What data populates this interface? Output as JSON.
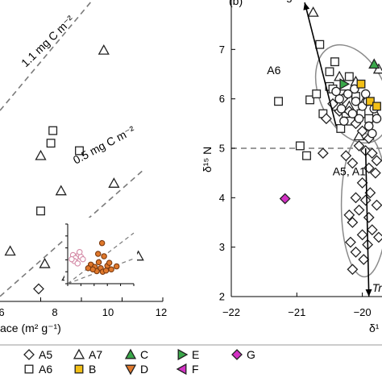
{
  "chart_data": [
    {
      "type": "scatter",
      "title": "",
      "xlabel": "ace (m² g⁻¹)",
      "xlim": [
        4,
        12
      ],
      "xticks": [
        "6",
        "8",
        "10",
        "12"
      ],
      "ylim": [
        0,
        12
      ],
      "grid": false,
      "reference_lines": [
        {
          "label": "1.1 mg C m⁻²",
          "points": [
            [
              4,
              7.6
            ],
            [
              10.2,
              13.6
            ]
          ]
        },
        {
          "label": "0.5 mg C m⁻²",
          "points": [
            [
              4,
              0.2
            ],
            [
              11,
              5.2
            ]
          ]
        }
      ],
      "series": [
        {
          "name": "A7",
          "marker": "triangle-up",
          "color": "#ffffff",
          "points": [
            [
              9.1,
              10.0
            ],
            [
              6.0,
              5.8
            ],
            [
              7.0,
              4.4
            ],
            [
              9.6,
              4.7
            ],
            [
              6.2,
              1.5
            ],
            [
              7.3,
              1.0
            ],
            [
              10.8,
              1.8
            ],
            [
              4.5,
              2.0
            ]
          ]
        },
        {
          "name": "A6",
          "marker": "square",
          "color": "#ffffff",
          "points": [
            [
              7.9,
              6.0
            ],
            [
              6.6,
              6.8
            ],
            [
              6.0,
              3.6
            ],
            [
              6.5,
              6.3
            ]
          ]
        },
        {
          "name": "A5",
          "marker": "diamond",
          "color": "#ffffff",
          "points": [
            [
              5.9,
              0.5
            ],
            [
              7.6,
              -0.5
            ]
          ]
        }
      ],
      "inset": {
        "xlim": [
          0,
          10
        ],
        "ylim": [
          0,
          10
        ],
        "series": [
          {
            "name": "pink-open",
            "color": "#d48aa6",
            "points": [
              [
                0.8,
                4.8
              ],
              [
                1.2,
                4.3
              ],
              [
                1.7,
                4.9
              ],
              [
                1.0,
                3.8
              ],
              [
                2.0,
                4.5
              ],
              [
                0.6,
                4.1
              ],
              [
                1.5,
                3.4
              ],
              [
                2.3,
                4.1
              ],
              [
                1.8,
                5.3
              ]
            ]
          },
          {
            "name": "orange-filled",
            "color": "#e0782b",
            "points": [
              [
                5.2,
                6.8
              ],
              [
                4.6,
                5.0
              ],
              [
                5.5,
                4.6
              ],
              [
                3.5,
                3.2
              ],
              [
                4.1,
                2.8
              ],
              [
                5.0,
                2.6
              ],
              [
                6.0,
                3.0
              ],
              [
                4.4,
                2.1
              ],
              [
                5.3,
                2.0
              ],
              [
                3.8,
                2.4
              ],
              [
                6.6,
                2.4
              ],
              [
                7.4,
                2.9
              ],
              [
                4.7,
                3.6
              ],
              [
                5.8,
                2.2
              ],
              [
                3.1,
                2.6
              ],
              [
                6.3,
                3.5
              ]
            ]
          }
        ],
        "lines": [
          [
            [
              0,
              0
            ],
            [
              10,
              8.5
            ]
          ],
          [
            [
              0,
              0
            ],
            [
              10,
              4.2
            ]
          ]
        ]
      }
    },
    {
      "type": "scatter",
      "panel_label": "(b)",
      "title": "",
      "xlabel": "δ¹",
      "ylabel": "δ¹⁵ N",
      "xlim": [
        -22,
        -19.7
      ],
      "xticks": [
        "−22",
        "−21",
        "−20"
      ],
      "ylim": [
        2,
        8
      ],
      "yticks": [
        "2",
        "3",
        "4",
        "5",
        "6",
        "7"
      ],
      "grid": false,
      "hline": 5.0,
      "annotations": [
        {
          "text": "degradation",
          "x": -20.9,
          "y": 8.0
        },
        {
          "text": "A6",
          "x": -21.35,
          "y": 6.5
        },
        {
          "text": "A5, A1",
          "x": -20.2,
          "y": 4.45
        },
        {
          "text": "Tr",
          "x": -19.85,
          "y": 2.1,
          "italic": true
        }
      ],
      "ellipses": [
        {
          "name": "A6",
          "cx": -20.15,
          "cy": 6.1,
          "rx": 0.5,
          "ry": 1.05,
          "rotate": -25
        },
        {
          "name": "A5, A1",
          "cx": -19.97,
          "cy": 3.85,
          "rx": 0.35,
          "ry": 1.45,
          "rotate": 0
        }
      ],
      "arrows": [
        {
          "from": [
            -20.4,
            5.45
          ],
          "to": [
            -20.88,
            7.95
          ]
        },
        {
          "from": [
            -19.95,
            5.0
          ],
          "to": [
            -19.9,
            2.0
          ]
        }
      ],
      "series": [
        {
          "name": "A7",
          "marker": "triangle-up",
          "color": "#ffffff",
          "points": [
            [
              -20.75,
              7.75
            ],
            [
              -20.35,
              6.45
            ],
            [
              -20.1,
              6.35
            ],
            [
              -20.2,
              5.85
            ],
            [
              -19.95,
              6.0
            ],
            [
              -19.8,
              5.7
            ],
            [
              -20.05,
              5.25
            ],
            [
              -19.75,
              6.6
            ]
          ]
        },
        {
          "name": "A6",
          "marker": "square",
          "color": "#ffffff",
          "points": [
            [
              -20.65,
              7.1
            ],
            [
              -21.28,
              5.95
            ],
            [
              -20.42,
              6.75
            ],
            [
              -20.5,
              6.55
            ],
            [
              -20.8,
              5.98
            ],
            [
              -20.3,
              6.1
            ],
            [
              -20.95,
              5.05
            ],
            [
              -20.2,
              6.45
            ],
            [
              -20.25,
              5.65
            ],
            [
              -20.1,
              6.05
            ],
            [
              -20.02,
              5.7
            ],
            [
              -20.33,
              5.4
            ],
            [
              -20.5,
              6.25
            ],
            [
              -20.4,
              5.85
            ],
            [
              -20.18,
              5.55
            ],
            [
              -19.9,
              5.6
            ],
            [
              -20.7,
              6.1
            ],
            [
              -20.6,
              5.7
            ],
            [
              -20.85,
              4.85
            ],
            [
              -20.45,
              6.2
            ]
          ]
        },
        {
          "name": "A5",
          "marker": "diamond",
          "color": "#ffffff",
          "points": [
            [
              -20.45,
              5.9
            ],
            [
              -20.3,
              6.0
            ],
            [
              -20.2,
              5.75
            ],
            [
              -20.1,
              5.5
            ],
            [
              -20.0,
              5.35
            ],
            [
              -19.9,
              5.2
            ],
            [
              -20.05,
              5.05
            ],
            [
              -19.95,
              4.95
            ],
            [
              -19.85,
              4.9
            ],
            [
              -20.15,
              4.7
            ],
            [
              -19.9,
              4.6
            ],
            [
              -19.8,
              4.5
            ],
            [
              -20.0,
              4.3
            ],
            [
              -19.88,
              4.1
            ],
            [
              -20.1,
              4.0
            ],
            [
              -19.95,
              3.95
            ],
            [
              -19.78,
              3.85
            ],
            [
              -20.05,
              3.75
            ],
            [
              -19.9,
              3.6
            ],
            [
              -20.15,
              3.5
            ],
            [
              -19.85,
              3.35
            ],
            [
              -20.0,
              3.25
            ],
            [
              -19.92,
              3.05
            ],
            [
              -20.1,
              2.9
            ],
            [
              -19.98,
              2.75
            ],
            [
              -20.15,
              2.55
            ],
            [
              -20.6,
              4.9
            ],
            [
              -20.25,
              4.85
            ],
            [
              -19.78,
              4.75
            ],
            [
              -20.2,
              3.65
            ],
            [
              -19.75,
              3.2
            ],
            [
              -20.18,
              3.1
            ],
            [
              -20.55,
              5.6
            ],
            [
              -20.35,
              5.75
            ]
          ]
        },
        {
          "name": "A1",
          "marker": "circle",
          "color": "#ffffff",
          "points": [
            [
              -20.35,
              6.0
            ],
            [
              -20.22,
              6.1
            ],
            [
              -20.1,
              5.95
            ],
            [
              -20.0,
              5.85
            ],
            [
              -19.92,
              5.95
            ],
            [
              -20.15,
              5.7
            ],
            [
              -19.82,
              5.8
            ],
            [
              -20.28,
              5.55
            ],
            [
              -20.05,
              5.6
            ],
            [
              -19.9,
              5.45
            ],
            [
              -19.78,
              5.6
            ],
            [
              -20.4,
              6.15
            ],
            [
              -20.12,
              6.2
            ],
            [
              -19.95,
              6.1
            ],
            [
              -20.32,
              5.8
            ],
            [
              -19.85,
              5.3
            ]
          ]
        },
        {
          "name": "C",
          "marker": "triangle-up",
          "color": "#3aa84a",
          "points": [
            [
              -19.82,
              6.7
            ]
          ]
        },
        {
          "name": "E",
          "marker": "triangle-right",
          "color": "#3aa84a",
          "points": [
            [
              -20.28,
              6.3
            ]
          ]
        },
        {
          "name": "B",
          "marker": "square",
          "color": "#f2bf16",
          "points": [
            [
              -19.88,
              5.95
            ],
            [
              -19.78,
              5.85
            ],
            [
              -20.02,
              6.3
            ]
          ]
        },
        {
          "name": "G",
          "marker": "diamond",
          "color": "#d331c4",
          "points": [
            [
              -21.18,
              3.98
            ]
          ]
        }
      ]
    }
  ],
  "legend": {
    "placement": "bottom",
    "items": [
      {
        "label": "A5",
        "marker": "diamond",
        "color": "#ffffff"
      },
      {
        "label": "A7",
        "marker": "triangle-up",
        "color": "#ffffff"
      },
      {
        "label": "C",
        "marker": "triangle-up",
        "color": "#3aa84a"
      },
      {
        "label": "E",
        "marker": "triangle-right",
        "color": "#3aa84a"
      },
      {
        "label": "G",
        "marker": "diamond",
        "color": "#d331c4"
      },
      {
        "label": "A6",
        "marker": "square",
        "color": "#ffffff"
      },
      {
        "label": "B",
        "marker": "square",
        "color": "#f2bf16"
      },
      {
        "label": "D",
        "marker": "triangle-down",
        "color": "#e0782b"
      },
      {
        "label": "F",
        "marker": "triangle-left",
        "color": "#d331c4"
      }
    ]
  }
}
